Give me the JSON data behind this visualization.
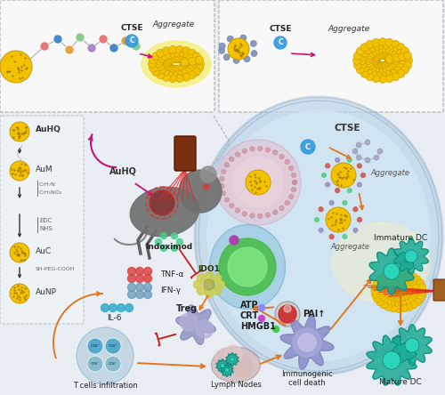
{
  "bg_color": "#e8eef4",
  "labels": {
    "ctse": "CTSE",
    "aggregate": "Aggregate",
    "auhq": "AuHQ",
    "aum": "AuM",
    "auc": "AuC",
    "aunp": "AuNP",
    "indoximod": "Indoximod",
    "tnf": "TNF-α",
    "ifng": "IFN-γ",
    "il6": "IL-6",
    "ido1": "IDO1",
    "treg": "Treg",
    "t_cells": "T cells infiltration",
    "lymph": "Lymph Nodes",
    "atp": "ATP",
    "crt": "CRT",
    "hmgb1": "HMGB1",
    "pai": "PAI↑",
    "immdc": "Immature DC",
    "matdc": "Mature DC",
    "immcell": "Immunogenic\ncell death"
  },
  "gold_color": "#f2c200",
  "gold_edge": "#c89800",
  "arrow_orange": "#e07820",
  "arrow_magenta": "#cc1077",
  "arrow_red": "#cc2020",
  "teal_color": "#1aaa95",
  "cell_blue": "#c0d8ec"
}
